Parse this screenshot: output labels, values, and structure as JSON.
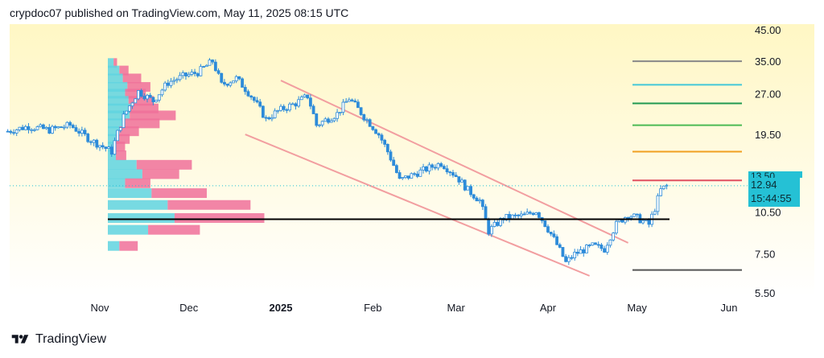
{
  "header": {
    "text": "crypdoc07 published on TradingView.com, May 11, 2025 08:15 UTC"
  },
  "price_badge": {
    "price": "12.94",
    "countdown": "15:44:55",
    "hidden_tick": "13.50"
  },
  "footer": {
    "brand": "TradingView"
  },
  "colors": {
    "candle": "#2d8bd9",
    "volume_up": "#5fd4e0",
    "volume_down": "#f0709a",
    "poc_line": "#000000",
    "channel": "#f29ea0",
    "badge": "#25c1d5"
  },
  "chart_data": {
    "type": "candlestick",
    "title": "",
    "y_scale": "log",
    "ylim": [
      5.5,
      45
    ],
    "y_ticks": [
      "45.00",
      "35.00",
      "27.00",
      "19.50",
      "10.50",
      "7.50",
      "5.50"
    ],
    "x_ticks": [
      {
        "label": "Nov",
        "bold": false
      },
      {
        "label": "Dec",
        "bold": false
      },
      {
        "label": "2025",
        "bold": true
      },
      {
        "label": "Feb",
        "bold": false
      },
      {
        "label": "Mar",
        "bold": false
      },
      {
        "label": "Apr",
        "bold": false
      },
      {
        "label": "May",
        "bold": false
      },
      {
        "label": "Jun",
        "bold": false
      }
    ],
    "last_price": 12.94,
    "price_path": [
      [
        "2024-10-01",
        20.0
      ],
      [
        "2024-10-08",
        20.8
      ],
      [
        "2024-10-15",
        20.2
      ],
      [
        "2024-10-22",
        21.0
      ],
      [
        "2024-10-29",
        18.6
      ],
      [
        "2024-11-05",
        17.0
      ],
      [
        "2024-11-09",
        22.5
      ],
      [
        "2024-11-14",
        27.5
      ],
      [
        "2024-11-19",
        25.5
      ],
      [
        "2024-11-24",
        29.5
      ],
      [
        "2024-11-29",
        31.0
      ],
      [
        "2024-12-04",
        32.0
      ],
      [
        "2024-12-09",
        35.0
      ],
      [
        "2024-12-12",
        29.0
      ],
      [
        "2024-12-17",
        30.5
      ],
      [
        "2024-12-22",
        26.5
      ],
      [
        "2024-12-27",
        22.0
      ],
      [
        "2024-12-31",
        23.5
      ],
      [
        "2025-01-06",
        25.0
      ],
      [
        "2025-01-10",
        26.5
      ],
      [
        "2025-01-13",
        21.0
      ],
      [
        "2025-01-20",
        23.0
      ],
      [
        "2025-01-24",
        26.0
      ],
      [
        "2025-01-29",
        22.5
      ],
      [
        "2025-02-03",
        19.5
      ],
      [
        "2025-02-06",
        17.0
      ],
      [
        "2025-02-10",
        13.5
      ],
      [
        "2025-02-17",
        14.5
      ],
      [
        "2025-02-24",
        15.5
      ],
      [
        "2025-03-01",
        14.0
      ],
      [
        "2025-03-05",
        12.5
      ],
      [
        "2025-03-09",
        11.5
      ],
      [
        "2025-03-12",
        9.0
      ],
      [
        "2025-03-17",
        10.0
      ],
      [
        "2025-03-24",
        10.2
      ],
      [
        "2025-03-28",
        10.6
      ],
      [
        "2025-04-02",
        8.8
      ],
      [
        "2025-04-07",
        7.0
      ],
      [
        "2025-04-10",
        7.5
      ],
      [
        "2025-04-16",
        8.0
      ],
      [
        "2025-04-20",
        7.8
      ],
      [
        "2025-04-24",
        9.5
      ],
      [
        "2025-04-28",
        10.3
      ],
      [
        "2025-05-01",
        10.0
      ],
      [
        "2025-05-05",
        9.5
      ],
      [
        "2025-05-07",
        10.8
      ],
      [
        "2025-05-09",
        12.5
      ],
      [
        "2025-05-11",
        12.94
      ]
    ],
    "horizontal_levels": [
      {
        "value": 35.0,
        "color": "#888888"
      },
      {
        "value": 29.0,
        "color": "#44c8d8"
      },
      {
        "value": 25.0,
        "color": "#1f9950"
      },
      {
        "value": 21.0,
        "color": "#4cba55"
      },
      {
        "value": 17.0,
        "color": "#f0a020"
      },
      {
        "value": 13.5,
        "color": "#e05060"
      },
      {
        "value": 9.9,
        "color": "#000000"
      },
      {
        "value": 6.6,
        "color": "#555555"
      }
    ],
    "channel": {
      "upper": [
        [
          "2025-01-01",
          30.0
        ],
        [
          "2025-04-28",
          8.2
        ]
      ],
      "lower": [
        [
          "2024-12-20",
          19.5
        ],
        [
          "2025-04-15",
          6.3
        ]
      ]
    },
    "volume_profile": [
      {
        "price": 34.5,
        "up": 0.05,
        "down": 0.03
      },
      {
        "price": 32.5,
        "up": 0.1,
        "down": 0.08
      },
      {
        "price": 30.5,
        "up": 0.13,
        "down": 0.16
      },
      {
        "price": 28.5,
        "up": 0.17,
        "down": 0.2
      },
      {
        "price": 27.0,
        "up": 0.15,
        "down": 0.18
      },
      {
        "price": 25.5,
        "up": 0.18,
        "down": 0.22
      },
      {
        "price": 24.0,
        "up": 0.2,
        "down": 0.24
      },
      {
        "price": 22.7,
        "up": 0.19,
        "down": 0.4
      },
      {
        "price": 21.3,
        "up": 0.15,
        "down": 0.3
      },
      {
        "price": 20.0,
        "up": 0.1,
        "down": 0.17
      },
      {
        "price": 18.8,
        "up": 0.07,
        "down": 0.12
      },
      {
        "price": 17.7,
        "up": 0.05,
        "down": 0.1
      },
      {
        "price": 16.5,
        "up": 0.07,
        "down": 0.09
      },
      {
        "price": 15.3,
        "up": 0.25,
        "down": 0.48
      },
      {
        "price": 14.2,
        "up": 0.3,
        "down": 0.32
      },
      {
        "price": 13.2,
        "up": 0.15,
        "down": 0.22
      },
      {
        "price": 12.2,
        "up": 0.38,
        "down": 0.48
      },
      {
        "price": 11.1,
        "up": 0.52,
        "down": 0.72
      },
      {
        "price": 10.0,
        "up": 0.58,
        "down": 0.78
      },
      {
        "price": 9.1,
        "up": 0.35,
        "down": 0.45
      },
      {
        "price": 8.0,
        "up": 0.1,
        "down": 0.16
      }
    ]
  }
}
